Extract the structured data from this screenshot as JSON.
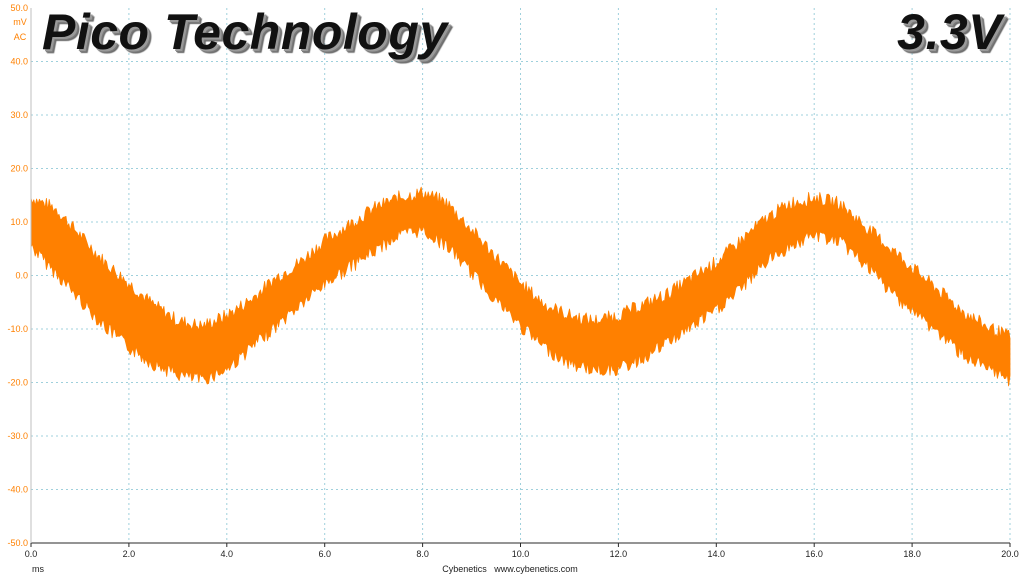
{
  "chart_data": {
    "type": "line",
    "title": "Pico Technology",
    "subtitle": "3.3V",
    "y_unit": "mV",
    "y_coupling": "AC",
    "x_unit": "ms",
    "watermark": "Cybenetics   www.cybenetics.com",
    "xlim": [
      0,
      20
    ],
    "ylim": [
      -50,
      50
    ],
    "grid": true,
    "x_ticks": [
      "0.0",
      "2.0",
      "4.0",
      "6.0",
      "8.0",
      "10.0",
      "12.0",
      "14.0",
      "16.0",
      "18.0",
      "20.0"
    ],
    "y_ticks": [
      "50.0",
      "40.0",
      "30.0",
      "20.0",
      "10.0",
      "0.0",
      "-10.0",
      "-20.0",
      "-30.0",
      "-40.0",
      "-50.0"
    ],
    "series": [
      {
        "color": "#ff8000",
        "x": [
          0.0,
          0.5,
          1.0,
          1.5,
          2.0,
          2.5,
          3.0,
          3.5,
          4.0,
          4.5,
          5.0,
          5.5,
          6.0,
          6.5,
          7.0,
          7.5,
          8.0,
          8.5,
          9.0,
          9.5,
          10.0,
          10.5,
          11.0,
          11.5,
          12.0,
          12.5,
          13.0,
          13.5,
          14.0,
          14.5,
          15.0,
          15.5,
          16.0,
          16.5,
          17.0,
          17.5,
          18.0,
          18.5,
          19.0,
          19.5,
          20.0
        ],
        "y_upper": [
          14,
          12,
          7,
          2,
          -2,
          -6,
          -9,
          -10,
          -8,
          -5,
          -1,
          2,
          6,
          9,
          12,
          14,
          15,
          13,
          8,
          3,
          -2,
          -6,
          -8,
          -9,
          -8,
          -6,
          -4,
          -1,
          2,
          6,
          10,
          13,
          14,
          13,
          9,
          5,
          1,
          -3,
          -7,
          -10,
          -12
        ],
        "y_lower": [
          6,
          1,
          -4,
          -9,
          -13,
          -16,
          -18,
          -19,
          -17,
          -13,
          -9,
          -5,
          -1,
          2,
          5,
          8,
          9,
          6,
          1,
          -4,
          -9,
          -13,
          -16,
          -17,
          -17,
          -15,
          -12,
          -9,
          -6,
          -2,
          3,
          6,
          8,
          7,
          3,
          -2,
          -6,
          -10,
          -14,
          -17,
          -19
        ]
      }
    ]
  }
}
